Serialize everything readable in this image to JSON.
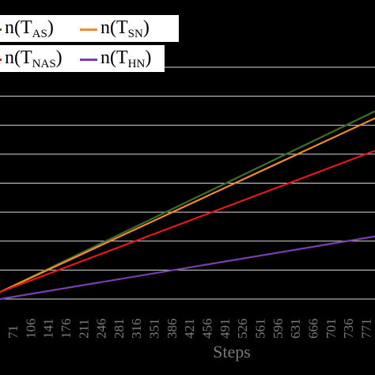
{
  "chart_data": {
    "type": "line",
    "xlabel": "Steps",
    "ylabel": "",
    "x_ticks": [
      "71",
      "106",
      "141",
      "176",
      "211",
      "246",
      "281",
      "316",
      "351",
      "386",
      "421",
      "456",
      "491",
      "526",
      "561",
      "596",
      "631",
      "666",
      "701",
      "736",
      "771"
    ],
    "xlim": [
      46,
      789
    ],
    "ylim": [
      0,
      1
    ],
    "grid": true,
    "legend_position": "top-left",
    "series": [
      {
        "name_prefix": "n(T",
        "name_sub": "AS",
        "name_suffix": ")",
        "color": "#3e6b2c",
        "x": [
          46,
          789
        ],
        "y": [
          0.03,
          0.81
        ]
      },
      {
        "name_prefix": "n(T",
        "name_sub": "SN",
        "name_suffix": ")",
        "color": "#f08a36",
        "x": [
          46,
          789
        ],
        "y": [
          0.03,
          0.78
        ]
      },
      {
        "name_prefix": "n(T",
        "name_sub": "NAS",
        "name_suffix": ")",
        "color": "#e0191c",
        "x": [
          46,
          789
        ],
        "y": [
          0.03,
          0.64
        ]
      },
      {
        "name_prefix": "n(T",
        "name_sub": "HN",
        "name_suffix": ")",
        "color": "#7a3eb0",
        "x": [
          46,
          789
        ],
        "y": [
          0.0,
          0.27
        ]
      }
    ]
  }
}
